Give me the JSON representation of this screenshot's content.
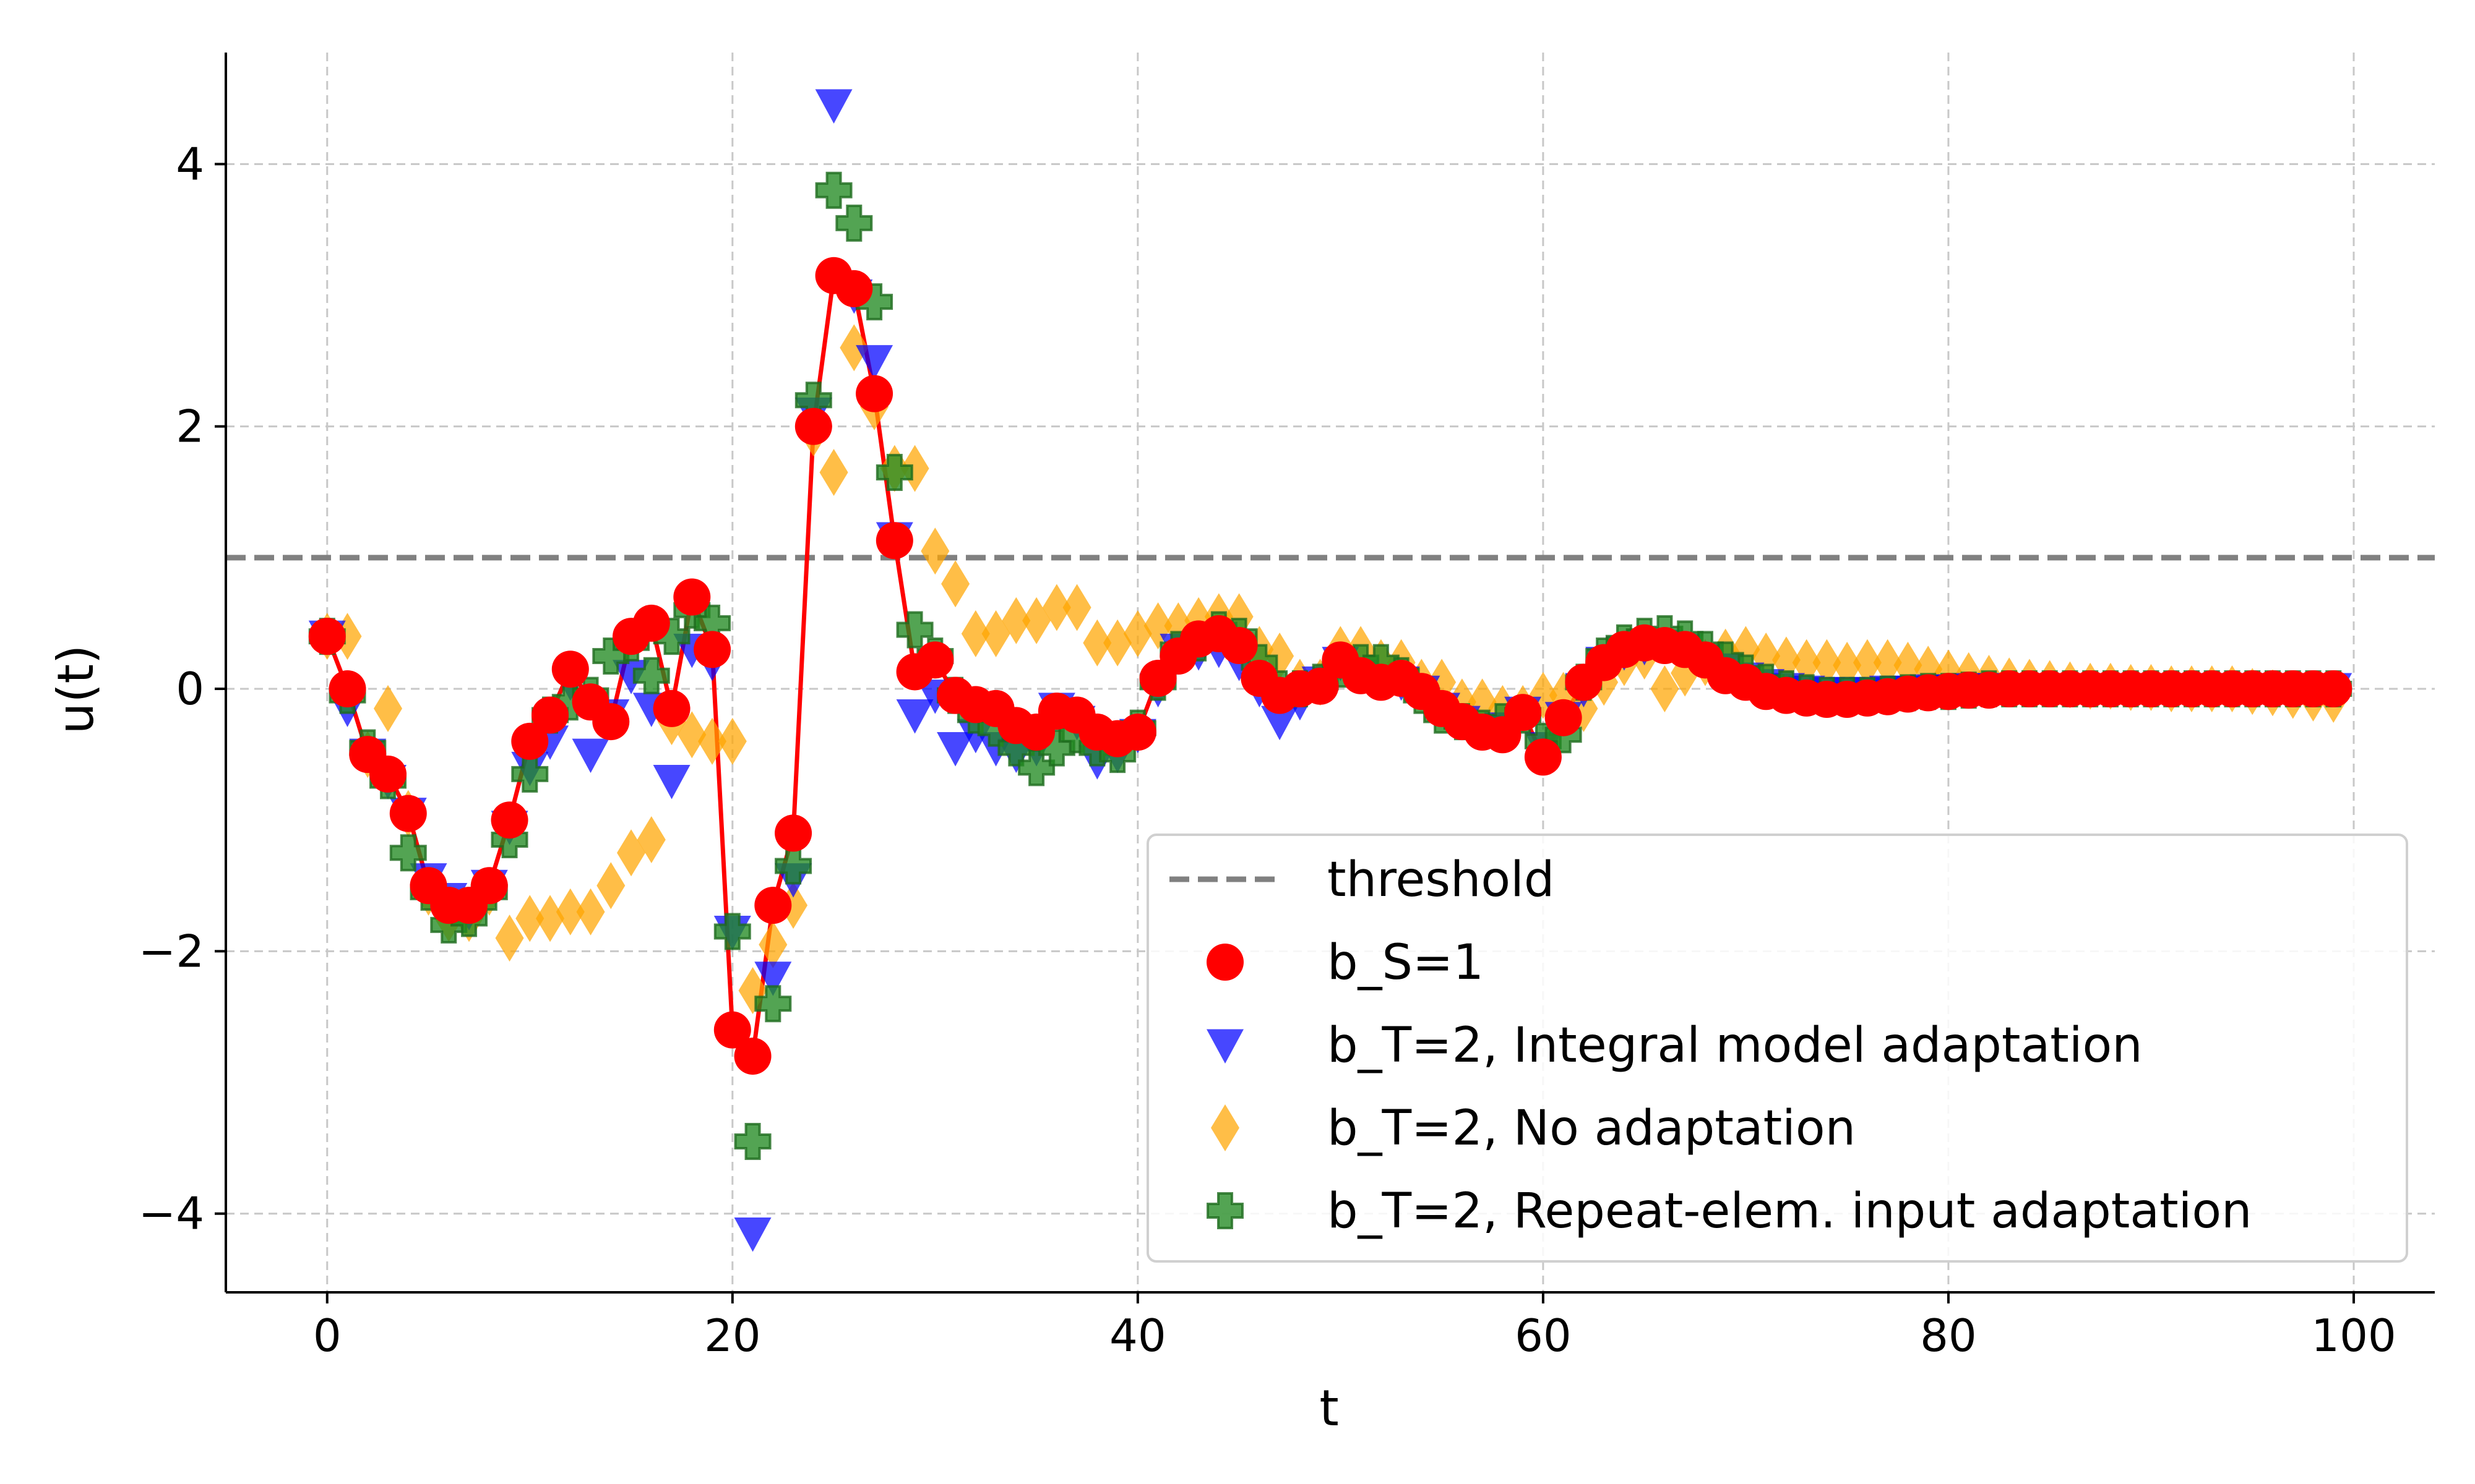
{
  "chart_data": {
    "type": "scatter",
    "title": "",
    "xlabel": "t",
    "ylabel": "u(t)",
    "xlim": [
      -5,
      104
    ],
    "ylim": [
      -4.6,
      4.85
    ],
    "xticks": [
      0,
      20,
      40,
      60,
      80,
      100
    ],
    "xtick_labels": [
      "0",
      "20",
      "40",
      "60",
      "80",
      "100"
    ],
    "yticks": [
      -4,
      -2,
      0,
      2,
      4
    ],
    "ytick_labels": [
      "−4",
      "−2",
      "0",
      "2",
      "4"
    ],
    "grid": true,
    "legend_position": "lower-right",
    "threshold": {
      "name": "threshold",
      "value": 1.0,
      "color": "#808080",
      "style": "dashed"
    },
    "series": [
      {
        "name": "b_S=1",
        "marker": "circle",
        "color": "#ff0000",
        "line": true,
        "values": [
          0.4,
          0.0,
          -0.5,
          -0.65,
          -0.95,
          -1.5,
          -1.65,
          -1.65,
          -1.5,
          -1.0,
          -0.4,
          -0.2,
          0.15,
          -0.1,
          -0.25,
          0.4,
          0.5,
          -0.15,
          0.7,
          0.3,
          -2.6,
          -2.8,
          -1.65,
          -1.1,
          2.0,
          3.15,
          3.05,
          2.25,
          1.13,
          0.13,
          0.22,
          -0.05,
          -0.12,
          -0.15,
          -0.28,
          -0.33,
          -0.17,
          -0.2,
          -0.33,
          -0.38,
          -0.33,
          0.08,
          0.25,
          0.38,
          0.42,
          0.33,
          0.08,
          -0.05,
          0.0,
          0.02,
          0.22,
          0.1,
          0.05,
          0.08,
          -0.02,
          -0.15,
          -0.25,
          -0.33,
          -0.35,
          -0.18,
          -0.52,
          -0.22,
          0.05,
          0.2,
          0.3,
          0.35,
          0.33,
          0.3,
          0.22,
          0.1,
          0.05,
          -0.02,
          -0.05,
          -0.07,
          -0.08,
          -0.08,
          -0.07,
          -0.06,
          -0.04,
          -0.03,
          -0.02,
          -0.01,
          -0.01,
          0.0,
          0.0,
          0.0,
          0.0,
          0.0,
          0.0,
          0.0,
          0.0,
          0.0,
          0.0,
          0.0,
          0.0,
          0.0,
          0.0,
          0.0,
          0.0,
          0.0
        ]
      },
      {
        "name": "b_T=2, Integral model adaptation",
        "marker": "triangle-down",
        "color": "#0000ff",
        "line": false,
        "values": [
          0.4,
          -0.15,
          -0.5,
          -0.7,
          -0.95,
          -1.45,
          -1.6,
          -1.7,
          -1.5,
          -1.05,
          -0.6,
          -0.4,
          0.05,
          -0.5,
          -0.2,
          0.1,
          -0.15,
          -0.7,
          0.3,
          0.2,
          -1.85,
          -4.15,
          -2.2,
          -1.45,
          2.1,
          4.45,
          3.0,
          2.5,
          1.15,
          -0.2,
          -0.05,
          -0.45,
          -0.35,
          -0.45,
          -0.5,
          -0.45,
          -0.15,
          -0.25,
          -0.55,
          -0.5,
          -0.35,
          0.0,
          0.3,
          0.28,
          0.3,
          0.2,
          0.0,
          -0.25,
          -0.1,
          0.05,
          0.2,
          0.1,
          0.05,
          0.05,
          -0.02,
          -0.15,
          -0.25,
          -0.32,
          -0.3,
          -0.18,
          -0.45,
          -0.22,
          0.0,
          0.2,
          0.28,
          0.32,
          0.33,
          0.3,
          0.22,
          0.15,
          0.08,
          0.03,
          0.0,
          -0.02,
          -0.03,
          -0.03,
          -0.03,
          -0.02,
          -0.02,
          -0.01,
          -0.01,
          0.0,
          0.0,
          0.0,
          0.0,
          0.0,
          0.0,
          0.0,
          0.0,
          0.0,
          0.0,
          0.0,
          0.0,
          0.0,
          0.0,
          0.0,
          0.0,
          0.0,
          0.0,
          0.0
        ]
      },
      {
        "name": "b_T=2, No adaptation",
        "marker": "diamond",
        "color": "#ffa500",
        "line": false,
        "values": [
          0.4,
          0.4,
          -0.5,
          -0.15,
          -0.95,
          -1.55,
          -1.75,
          -1.75,
          -1.55,
          -1.9,
          -1.75,
          -1.75,
          -1.7,
          -1.7,
          -1.5,
          -1.25,
          -1.15,
          -0.25,
          -0.35,
          -0.4,
          -0.4,
          -2.3,
          -1.95,
          -1.65,
          1.95,
          1.65,
          2.6,
          2.15,
          1.68,
          1.68,
          1.05,
          0.8,
          0.42,
          0.42,
          0.52,
          0.52,
          0.62,
          0.62,
          0.35,
          0.35,
          0.42,
          0.48,
          0.48,
          0.52,
          0.55,
          0.55,
          0.3,
          0.25,
          0.05,
          0.05,
          0.3,
          0.3,
          0.2,
          0.2,
          0.05,
          0.05,
          -0.1,
          -0.1,
          -0.15,
          -0.15,
          -0.05,
          -0.05,
          -0.15,
          0.05,
          0.2,
          0.25,
          0.0,
          0.12,
          0.2,
          0.28,
          0.3,
          0.25,
          0.22,
          0.2,
          0.2,
          0.18,
          0.2,
          0.2,
          0.18,
          0.15,
          0.12,
          0.1,
          0.08,
          0.06,
          0.05,
          0.04,
          0.03,
          0.02,
          0.02,
          0.01,
          0.01,
          0.0,
          0.0,
          0.0,
          0.0,
          -0.02,
          -0.03,
          -0.05,
          -0.07,
          -0.08
        ]
      },
      {
        "name": "b_T=2, Repeat-elem. input adaptation",
        "marker": "plus",
        "color": "#228b22",
        "line": false,
        "values": [
          0.4,
          -0.05,
          -0.45,
          -0.7,
          -1.25,
          -1.55,
          -1.8,
          -1.75,
          -1.55,
          -1.15,
          -0.65,
          -0.2,
          -0.1,
          -0.05,
          0.25,
          0.35,
          0.1,
          0.4,
          0.6,
          0.5,
          -1.85,
          -3.45,
          -2.4,
          -1.35,
          2.2,
          3.8,
          3.55,
          2.95,
          1.65,
          0.45,
          0.25,
          -0.05,
          -0.2,
          -0.3,
          -0.45,
          -0.6,
          -0.45,
          -0.35,
          -0.45,
          -0.5,
          -0.3,
          0.05,
          0.3,
          0.35,
          0.45,
          0.4,
          0.2,
          0.0,
          0.0,
          0.05,
          0.15,
          0.2,
          0.2,
          0.1,
          -0.05,
          -0.2,
          -0.25,
          -0.3,
          -0.25,
          -0.2,
          -0.4,
          -0.35,
          0.05,
          0.25,
          0.35,
          0.4,
          0.42,
          0.38,
          0.3,
          0.22,
          0.12,
          0.05,
          0.0,
          -0.03,
          -0.05,
          -0.05,
          -0.05,
          -0.04,
          -0.03,
          -0.02,
          -0.02,
          -0.01,
          0.0,
          0.0,
          0.0,
          0.0,
          0.0,
          0.0,
          0.0,
          0.0,
          0.0,
          0.0,
          0.0,
          0.0,
          0.0,
          0.0,
          0.0,
          0.0,
          0.0,
          0.0
        ]
      }
    ]
  }
}
